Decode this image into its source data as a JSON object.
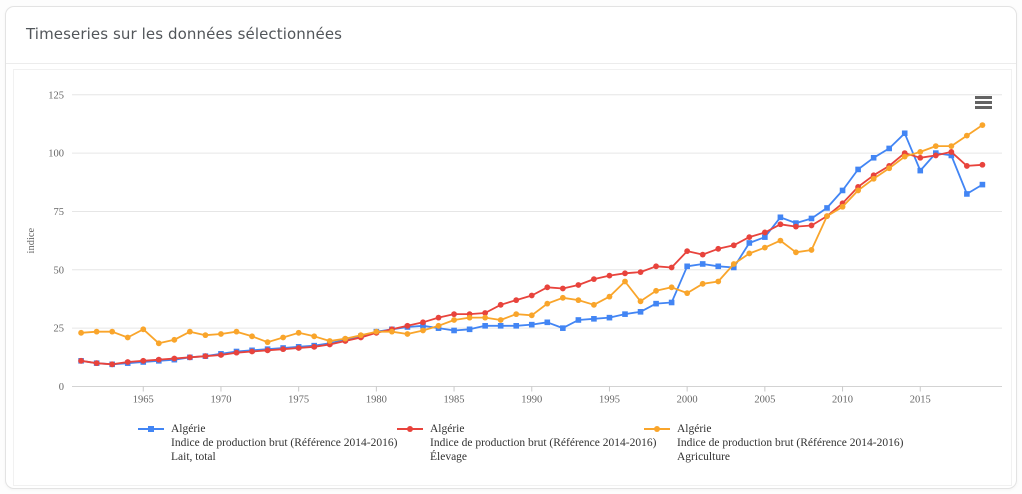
{
  "header": {
    "title": "Timeseries sur les données sélectionnées"
  },
  "icons": {
    "context_menu": "menu-icon"
  },
  "chart_data": {
    "type": "line",
    "title": "",
    "xlabel": "",
    "ylabel": "indice",
    "grid": "horizontal",
    "legend_position": "bottom",
    "ylim": [
      0,
      131
    ],
    "xlim": [
      1960,
      2020.5
    ],
    "y_ticks": [
      0,
      25,
      50,
      75,
      100,
      125
    ],
    "x_ticks": [
      1965,
      1970,
      1975,
      1980,
      1985,
      1990,
      1995,
      2000,
      2005,
      2010,
      2015
    ],
    "x": [
      1961,
      1962,
      1963,
      1964,
      1965,
      1966,
      1967,
      1968,
      1969,
      1970,
      1971,
      1972,
      1973,
      1974,
      1975,
      1976,
      1977,
      1978,
      1979,
      1980,
      1981,
      1982,
      1983,
      1984,
      1985,
      1986,
      1987,
      1988,
      1989,
      1990,
      1991,
      1992,
      1993,
      1994,
      1995,
      1996,
      1997,
      1998,
      1999,
      2000,
      2001,
      2002,
      2003,
      2004,
      2005,
      2006,
      2007,
      2008,
      2009,
      2010,
      2011,
      2012,
      2013,
      2014,
      2015,
      2016,
      2017,
      2018,
      2019
    ],
    "series": [
      {
        "name": "Algérie — Indice de production brut (Référence 2014-2016) — Lait, total",
        "legend": [
          "Algérie",
          "Indice de production brut (Référence 2014-2016)",
          "Lait, total"
        ],
        "color": "#4285f4",
        "marker": "square",
        "values": [
          11,
          10,
          9.5,
          10,
          10.5,
          11,
          11.5,
          12.5,
          13,
          14,
          15,
          15.5,
          16,
          16.5,
          17,
          17.5,
          18.5,
          20,
          21.5,
          23.5,
          24.5,
          25.5,
          26,
          25,
          24,
          24.5,
          26,
          26,
          26,
          26.5,
          27.5,
          25,
          28.5,
          29,
          29.5,
          31,
          32,
          35.5,
          36,
          51.5,
          52.5,
          51.5,
          51,
          61.5,
          64,
          72.5,
          70,
          72,
          76.5,
          84,
          93,
          98,
          102,
          108.5,
          92.5,
          100,
          99,
          82.5,
          86.5
        ]
      },
      {
        "name": "Algérie — Indice de production brut (Référence 2014-2016) — Élevage",
        "legend": [
          "Algérie",
          "Indice de production brut (Référence 2014-2016)",
          "Élevage"
        ],
        "color": "#e8433c",
        "marker": "circle",
        "values": [
          11,
          10,
          9.5,
          10.5,
          11,
          11.5,
          12,
          12.5,
          13,
          13.5,
          14.5,
          15,
          15.5,
          16,
          16.5,
          17,
          18,
          19.5,
          21,
          23,
          24.5,
          26,
          27.5,
          29.5,
          31,
          31,
          31.5,
          35,
          37,
          39,
          42.5,
          42,
          43.5,
          46,
          47.5,
          48.5,
          49,
          51.5,
          51,
          58,
          56.5,
          59,
          60.5,
          64,
          66,
          69.5,
          68.5,
          69,
          73,
          78.5,
          85.5,
          90.5,
          94.5,
          100,
          98,
          99,
          100.5,
          94.5,
          95
        ]
      },
      {
        "name": "Algérie — Indice de production brut (Référence 2014-2016) — Agriculture",
        "legend": [
          "Algérie",
          "Indice de production brut (Référence 2014-2016)",
          "Agriculture"
        ],
        "color": "#f9a52b",
        "marker": "circle",
        "values": [
          23,
          23.5,
          23.5,
          21,
          24.5,
          18.5,
          20,
          23.5,
          22,
          22.5,
          23.5,
          21.5,
          19,
          21,
          23,
          21.5,
          19.5,
          20.5,
          22,
          23.5,
          23.5,
          22.5,
          24,
          26,
          28.5,
          29.5,
          29.5,
          28.5,
          31,
          30.5,
          35.5,
          38,
          37,
          35,
          38.5,
          45,
          36.5,
          41,
          42.5,
          40,
          44,
          45,
          52.5,
          57,
          59.5,
          62.5,
          57.5,
          58.5,
          73,
          77,
          84,
          89,
          93.5,
          98.5,
          100.5,
          103,
          103,
          107.5,
          112
        ]
      }
    ]
  }
}
